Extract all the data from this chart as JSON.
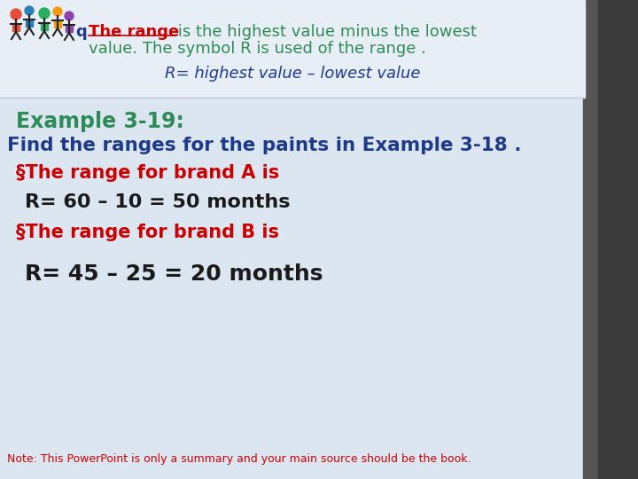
{
  "bg_color": "#dce6f1",
  "title_example": "Example 3-19:",
  "title_example_color": "#2e8b57",
  "line1": "Find the ranges for the paints in Example 3-18 .",
  "line1_color": "#1e3a8a",
  "bullet1": "§The range for brand A is",
  "bullet1_color": "#cc0000",
  "calc1": "R= 60 – 10 = 50 months",
  "calc1_color": "#1a1a1a",
  "bullet2": "§The range for brand B is",
  "bullet2_color": "#cc0000",
  "calc2": "R= 45 – 25 = 20 months",
  "calc2_color": "#1a1a1a",
  "header_text1": "The range",
  "header_text1_color": "#cc0000",
  "header_prefix": "q",
  "header_prefix_color": "#1e3a8a",
  "header_rest": " is the highest value minus the lowest",
  "header_rest_color": "#2e8b57",
  "header_line2": "value. The symbol R is used of the range .",
  "header_line2_color": "#2e8b57",
  "formula": "R= highest value – lowest value",
  "formula_color": "#1e3a8a",
  "note": "Note: This PowerPoint is only a summary and your main source should be the book.",
  "note_color": "#cc0000",
  "note_fontsize": 9,
  "right_panel_color": "#555555",
  "right_panel_dark_color": "#3a3a3a"
}
